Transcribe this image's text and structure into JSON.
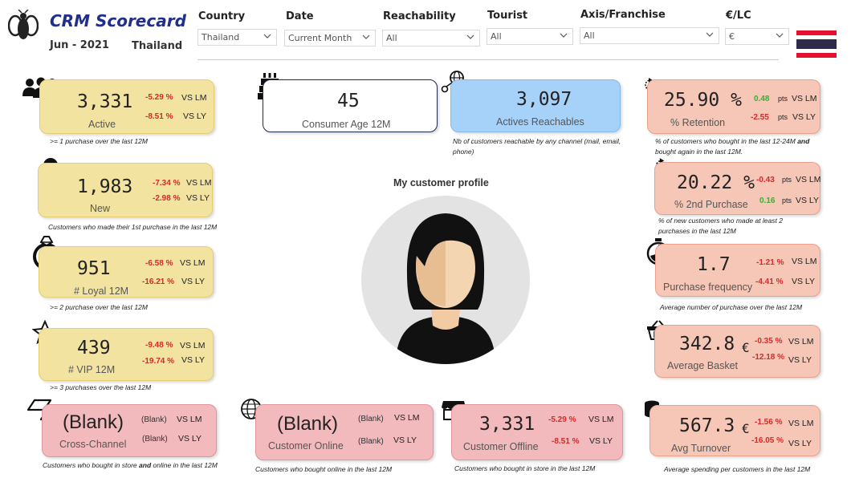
{
  "header": {
    "title": "CRM Scorecard",
    "period": "Jun - 2021",
    "country": "Thailand",
    "flag_colors": [
      "#e8112d",
      "#ffffff",
      "#2d2a4a"
    ]
  },
  "filters": [
    {
      "label": "Country",
      "value": "Thailand"
    },
    {
      "label": "Date",
      "value": "Current Month"
    },
    {
      "label": "Reachability",
      "value": "All"
    },
    {
      "label": "Tourist",
      "value": "All"
    },
    {
      "label": "Axis/Franchise",
      "value": "All"
    },
    {
      "label": "€/LC",
      "value": "€"
    }
  ],
  "vs_lm": "VS LM",
  "vs_ly": "VS LY",
  "pts": "pts",
  "currency": "€",
  "profile_title": "My customer profile",
  "kpis": {
    "active": {
      "value": "3,331",
      "label": "Active",
      "lm": "-5.29 %",
      "ly": "-8.51 %",
      "note": ">= 1 purchase over the last 12M",
      "icon": "people-icon"
    },
    "new": {
      "value": "1,983",
      "label": "New",
      "lm": "-7.34 %",
      "ly": "-2.98 %",
      "note": "Customers who made their 1st purchase in the last 12M",
      "icon": "new-user-icon"
    },
    "loyal": {
      "value": "951",
      "label": "# Loyal 12M",
      "lm": "-6.58 %",
      "ly": "-16.21 %",
      "note": ">= 2 purchase over the last 12M",
      "icon": "ring-icon"
    },
    "vip": {
      "value": "439",
      "label": "# VIP 12M",
      "lm": "-9.48 %",
      "ly": "-19.74 %",
      "note": ">= 3 purchases over the last 12M",
      "icon": "star-icon"
    },
    "age": {
      "value": "45",
      "label": "Consumer Age 12M",
      "icon": "cake-icon"
    },
    "reachables": {
      "value": "3,097",
      "label": "Actives Reachables",
      "note": "Nb of customers reachable by any channel (mail, email, phone)",
      "icon": "network-icon"
    },
    "retention": {
      "value": "25.90 %",
      "label": "% Retention",
      "lm": "0.48",
      "ly": "-2.55",
      "note_pre": "% of customers who bought in the last 12-24M",
      "note_bold": "and",
      "note_post": "bought again in the last 12M.",
      "icon": "refresh-icon"
    },
    "second_purchase": {
      "value": "20.22 %",
      "label": "% 2nd Purchase",
      "lm": "-0.43",
      "ly": "0.16",
      "note": "% of new customers who made at least 2 purchases in the last 12M",
      "icon": "refresh-icon"
    },
    "frequency": {
      "value": "1.7",
      "label": "Purchase frequency",
      "lm": "-1.21 %",
      "ly": "-4.41 %",
      "note": "Average number of purchase over the last 12M",
      "icon": "stopwatch-icon"
    },
    "basket": {
      "value": "342.8",
      "label": "Average Basket",
      "lm": "-0.35 %",
      "ly": "-12.18 %",
      "note": "",
      "icon": "basket-icon"
    },
    "cross_channel": {
      "value": "(Blank)",
      "label": "Cross-Channel",
      "lm": "(Blank)",
      "ly": "(Blank)",
      "note_pre": "Customers who bought in store",
      "note_bold": "and",
      "note_post": "online in the last 12M",
      "icon": "link-icon"
    },
    "online": {
      "value": "(Blank)",
      "label": "Customer Online",
      "lm": "(Blank)",
      "ly": "(Blank)",
      "note": "Customers who bought online in the last 12M",
      "icon": "globe-cursor-icon"
    },
    "offline": {
      "value": "3,331",
      "label": "Customer Offline",
      "lm": "-5.29 %",
      "ly": "-8.51 %",
      "note": "Customers who bought in store in the last 12M",
      "icon": "store-icon"
    },
    "turnover": {
      "value": "567.3",
      "label": "Avg Turnover",
      "lm": "-1.56 %",
      "ly": "-16.05 %",
      "note": "Average spending per customers in the last 12M",
      "icon": "coins-icon"
    }
  }
}
